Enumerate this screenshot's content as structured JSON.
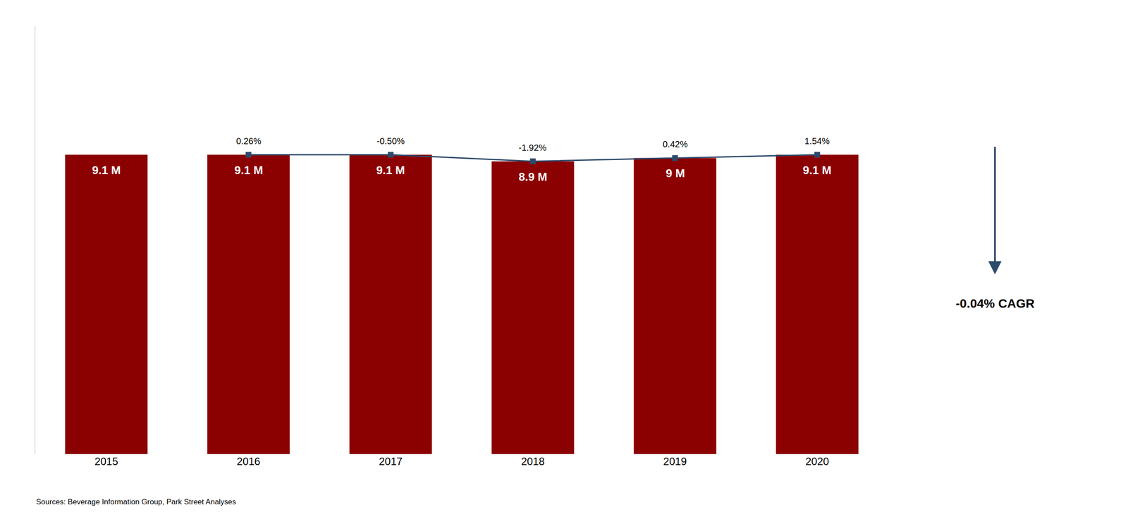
{
  "chart_data": {
    "type": "bar",
    "categories": [
      "2015",
      "2016",
      "2017",
      "2018",
      "2019",
      "2020"
    ],
    "series": [
      {
        "type": "bar",
        "color": "#8B0000",
        "values": [
          9.1,
          9.1,
          9.1,
          8.9,
          9.0,
          9.1
        ],
        "value_labels": [
          "9.1 M",
          "9.1 M",
          "9.1 M",
          "8.9 M",
          "9 M",
          "9.1 M"
        ]
      },
      {
        "type": "line",
        "color": "#2E4A6B",
        "marker": "square",
        "values": [
          null,
          9.1,
          9.1,
          8.9,
          9.0,
          9.1
        ]
      }
    ],
    "annotations": [
      {
        "x": "2016",
        "text": "0.26%"
      },
      {
        "x": "2017",
        "text": "-0.50%"
      },
      {
        "x": "2018",
        "text": "-1.92%"
      },
      {
        "x": "2019",
        "text": "0.42%"
      },
      {
        "x": "2020",
        "text": "1.54%"
      },
      {
        "text": "-0.04% CAGR",
        "arrow": "down",
        "color": "#2E4A6B"
      }
    ],
    "source": "Sources: Beverage Information Group, Park Street Analyses",
    "ylim": [
      0,
      13
    ],
    "data_labels": true,
    "tick_labels": "x",
    "grid": false
  }
}
